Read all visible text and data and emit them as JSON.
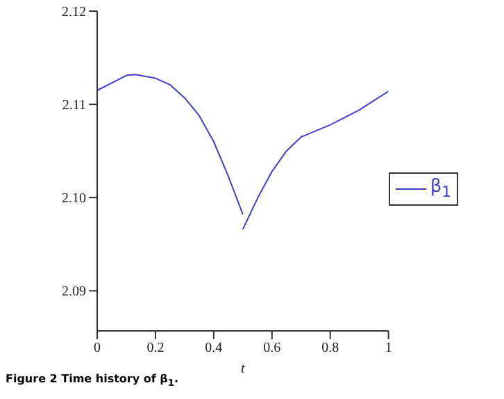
{
  "chart_data": {
    "type": "line",
    "xlabel": "t",
    "annotations": [
      "Figure 2  Time history of β$_{1}$."
    ],
    "series": [
      {
        "name": "β$_{1}$",
        "color": "#4040d0",
        "x": [
          0,
          0.05,
          0.1,
          0.13,
          0.2,
          0.25,
          0.3,
          0.35,
          0.4,
          0.45,
          0.5
        ],
        "values": [
          2.1115,
          2.1123,
          2.1131,
          2.1132,
          2.1128,
          2.1121,
          2.1107,
          2.1088,
          2.106,
          2.1023,
          2.0982
        ]
      },
      {
        "color": "#4040d0",
        "x": [
          0.5,
          0.55,
          0.6,
          0.65,
          0.7,
          0.8,
          0.9,
          1
        ],
        "values": [
          2.0966,
          2.0999,
          2.1028,
          2.105,
          2.1065,
          2.1078,
          2.1094,
          2.1114
        ]
      }
    ],
    "xlim": [
      0,
      1
    ],
    "xticks": [
      0,
      0.2,
      0.4,
      0.6,
      0.8,
      1
    ],
    "ylim": [
      2.0857,
      2.12
    ],
    "yticks": [
      {
        "value": 2.09,
        "label": "2.09"
      },
      {
        "value": 2.1,
        "label": "2.10"
      },
      {
        "value": 2.11,
        "label": "2.11"
      },
      {
        "value": 2.12,
        "label": "2.12"
      }
    ],
    "grid": false,
    "legend": "right",
    "marker": "none",
    "line_style": "solid"
  }
}
